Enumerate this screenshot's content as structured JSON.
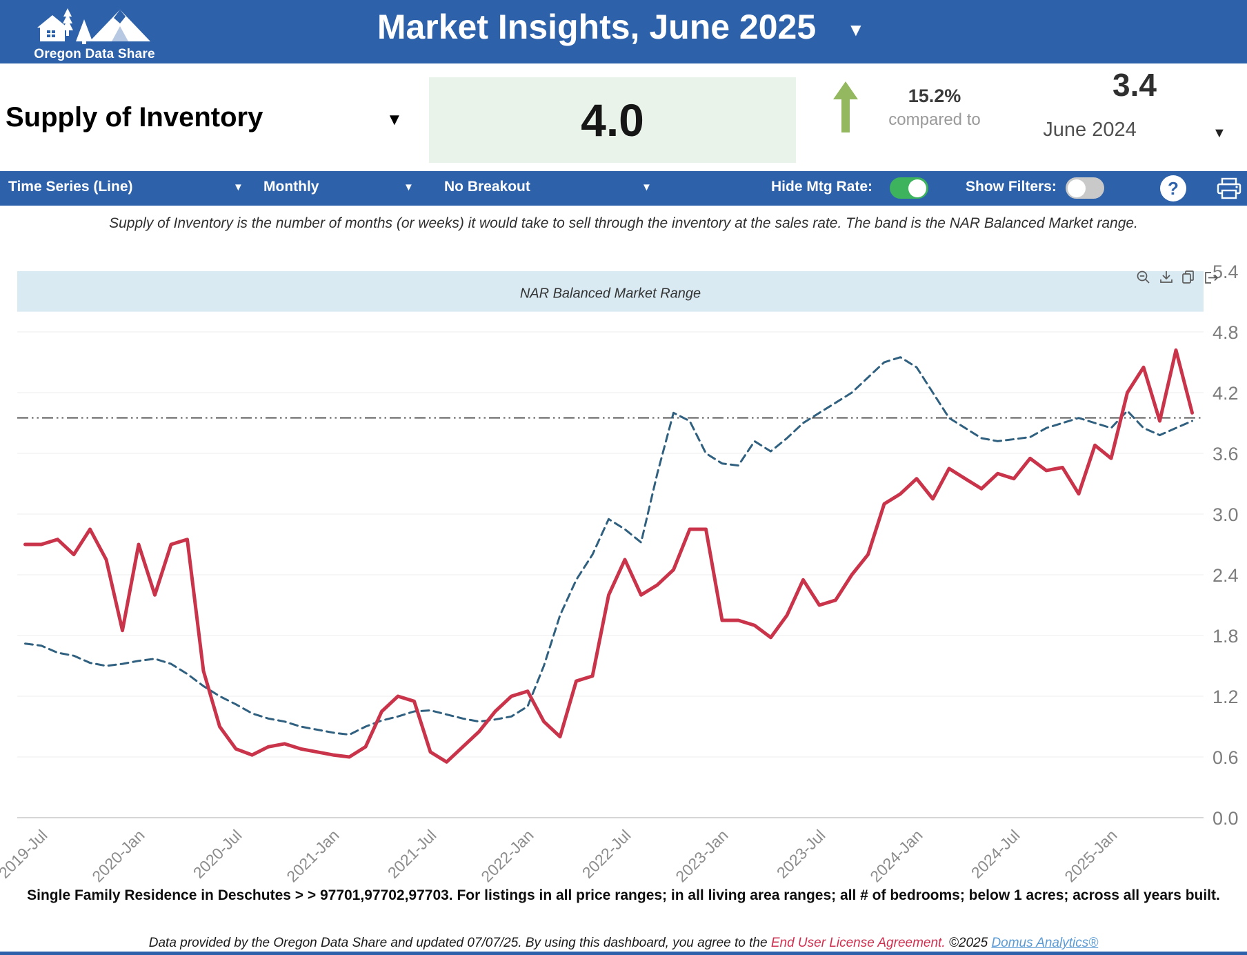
{
  "header": {
    "logo_text": "Oregon Data Share",
    "title": "Market Insights, June 2025"
  },
  "kpi": {
    "metric_label": "Supply of Inventory",
    "current_value": "4.0",
    "change_pct": "15.2%",
    "change_note": "compared to",
    "change_direction": "up",
    "compare_value": "3.4",
    "compare_period": "June 2024"
  },
  "toolbar": {
    "chart_type": "Time Series (Line)",
    "frequency": "Monthly",
    "breakout": "No Breakout",
    "hide_mtg_label": "Hide Mtg Rate:",
    "hide_mtg_on": true,
    "show_filters_label": "Show Filters:",
    "show_filters_on": false,
    "help_label": "?"
  },
  "description": "Supply of Inventory is the number of months (or weeks) it would take to sell through the inventory at the sales rate. The band is the NAR Balanced Market range.",
  "chart_data": {
    "type": "line",
    "title": "",
    "xlabel": "",
    "ylabel": "",
    "ylim": [
      0,
      5.4
    ],
    "yticks": [
      5.4,
      4.8,
      4.2,
      3.6,
      3.0,
      2.4,
      1.8,
      1.2,
      0.6,
      0.0
    ],
    "grid": true,
    "legend_position": "none",
    "band": {
      "label": "NAR Balanced Market Range",
      "from": 5.0,
      "to": 5.4,
      "color": "#d9eaf3"
    },
    "reference_line": {
      "value": 3.95,
      "style": "dash-dot",
      "color": "#3c3c3c"
    },
    "x": [
      "2019-Jun",
      "2019-Jul",
      "2019-Aug",
      "2019-Sep",
      "2019-Oct",
      "2019-Nov",
      "2019-Dec",
      "2020-Jan",
      "2020-Feb",
      "2020-Mar",
      "2020-Apr",
      "2020-May",
      "2020-Jun",
      "2020-Jul",
      "2020-Aug",
      "2020-Sep",
      "2020-Oct",
      "2020-Nov",
      "2020-Dec",
      "2021-Jan",
      "2021-Feb",
      "2021-Mar",
      "2021-Apr",
      "2021-May",
      "2021-Jun",
      "2021-Jul",
      "2021-Aug",
      "2021-Sep",
      "2021-Oct",
      "2021-Nov",
      "2021-Dec",
      "2022-Jan",
      "2022-Feb",
      "2022-Mar",
      "2022-Apr",
      "2022-May",
      "2022-Jun",
      "2022-Jul",
      "2022-Aug",
      "2022-Sep",
      "2022-Oct",
      "2022-Nov",
      "2022-Dec",
      "2023-Jan",
      "2023-Feb",
      "2023-Mar",
      "2023-Apr",
      "2023-May",
      "2023-Jun",
      "2023-Jul",
      "2023-Aug",
      "2023-Sep",
      "2023-Oct",
      "2023-Nov",
      "2023-Dec",
      "2024-Jan",
      "2024-Feb",
      "2024-Mar",
      "2024-Apr",
      "2024-May",
      "2024-Jun",
      "2024-Jul",
      "2024-Aug",
      "2024-Sep",
      "2024-Oct",
      "2024-Nov",
      "2024-Dec",
      "2025-Jan",
      "2025-Feb",
      "2025-Mar",
      "2025-Apr",
      "2025-May",
      "2025-Jun"
    ],
    "x_tick_labels": [
      "2019-Jul",
      "2020-Jan",
      "2020-Jul",
      "2021-Jan",
      "2021-Jul",
      "2022-Jan",
      "2022-Jul",
      "2023-Jan",
      "2023-Jul",
      "2024-Jan",
      "2024-Jul",
      "2025-Jan"
    ],
    "series": [
      {
        "name": "Supply of Inventory",
        "color": "#c9344a",
        "style": "solid",
        "values": [
          2.7,
          2.7,
          2.75,
          2.6,
          2.85,
          2.55,
          1.85,
          2.7,
          2.2,
          2.7,
          2.75,
          1.45,
          0.9,
          0.68,
          0.62,
          0.7,
          0.73,
          0.68,
          0.65,
          0.62,
          0.6,
          0.7,
          1.05,
          1.2,
          1.15,
          0.65,
          0.55,
          0.7,
          0.85,
          1.05,
          1.2,
          1.25,
          0.95,
          0.8,
          1.35,
          1.4,
          2.2,
          2.55,
          2.2,
          2.3,
          2.45,
          2.85,
          2.85,
          1.95,
          1.95,
          1.9,
          1.78,
          2.0,
          2.35,
          2.1,
          2.15,
          2.4,
          2.6,
          3.1,
          3.2,
          3.35,
          3.15,
          3.45,
          3.35,
          3.25,
          3.4,
          3.35,
          3.55,
          3.43,
          3.46,
          3.2,
          3.68,
          3.55,
          4.2,
          4.45,
          3.92,
          4.62,
          4.0
        ]
      },
      {
        "name": "Mtg Rate",
        "color": "#30607f",
        "style": "dashed",
        "values": [
          1.72,
          1.7,
          1.63,
          1.6,
          1.53,
          1.5,
          1.52,
          1.55,
          1.57,
          1.52,
          1.42,
          1.3,
          1.2,
          1.12,
          1.03,
          0.98,
          0.95,
          0.9,
          0.87,
          0.84,
          0.82,
          0.9,
          0.96,
          1.0,
          1.05,
          1.06,
          1.02,
          0.98,
          0.95,
          0.97,
          1.0,
          1.1,
          1.5,
          2.0,
          2.35,
          2.6,
          2.95,
          2.85,
          2.72,
          3.4,
          4.0,
          3.92,
          3.6,
          3.5,
          3.48,
          3.72,
          3.62,
          3.75,
          3.9,
          4.0,
          4.1,
          4.2,
          4.35,
          4.5,
          4.55,
          4.45,
          4.2,
          3.95,
          3.85,
          3.75,
          3.72,
          3.74,
          3.76,
          3.85,
          3.9,
          3.95,
          3.9,
          3.85,
          4.02,
          3.85,
          3.78,
          3.85,
          3.92
        ]
      }
    ]
  },
  "footer": {
    "filters_line": "Single Family Residence in Deschutes > > 97701,97702,97703. For listings in all price ranges; in all living area ranges; all # of bedrooms; below 1 acres; across all years built.",
    "credit_prefix": "Data provided by the Oregon Data Share and updated 07/07/25.  By using this dashboard, you agree to the ",
    "license_link": "End User License Agreement.",
    "credit_mid": "  ©2025 ",
    "brand_link": "Domus Analytics®"
  },
  "colors": {
    "header_blue": "#2d62ab",
    "kpi_box_green": "#e9f3ea",
    "arrow_green": "#94b85f",
    "toggle_on_green": "#3cb35c",
    "band_blue": "#d9eaf3",
    "supply_line_red": "#c9344a",
    "mtg_line_blue": "#30607f"
  }
}
